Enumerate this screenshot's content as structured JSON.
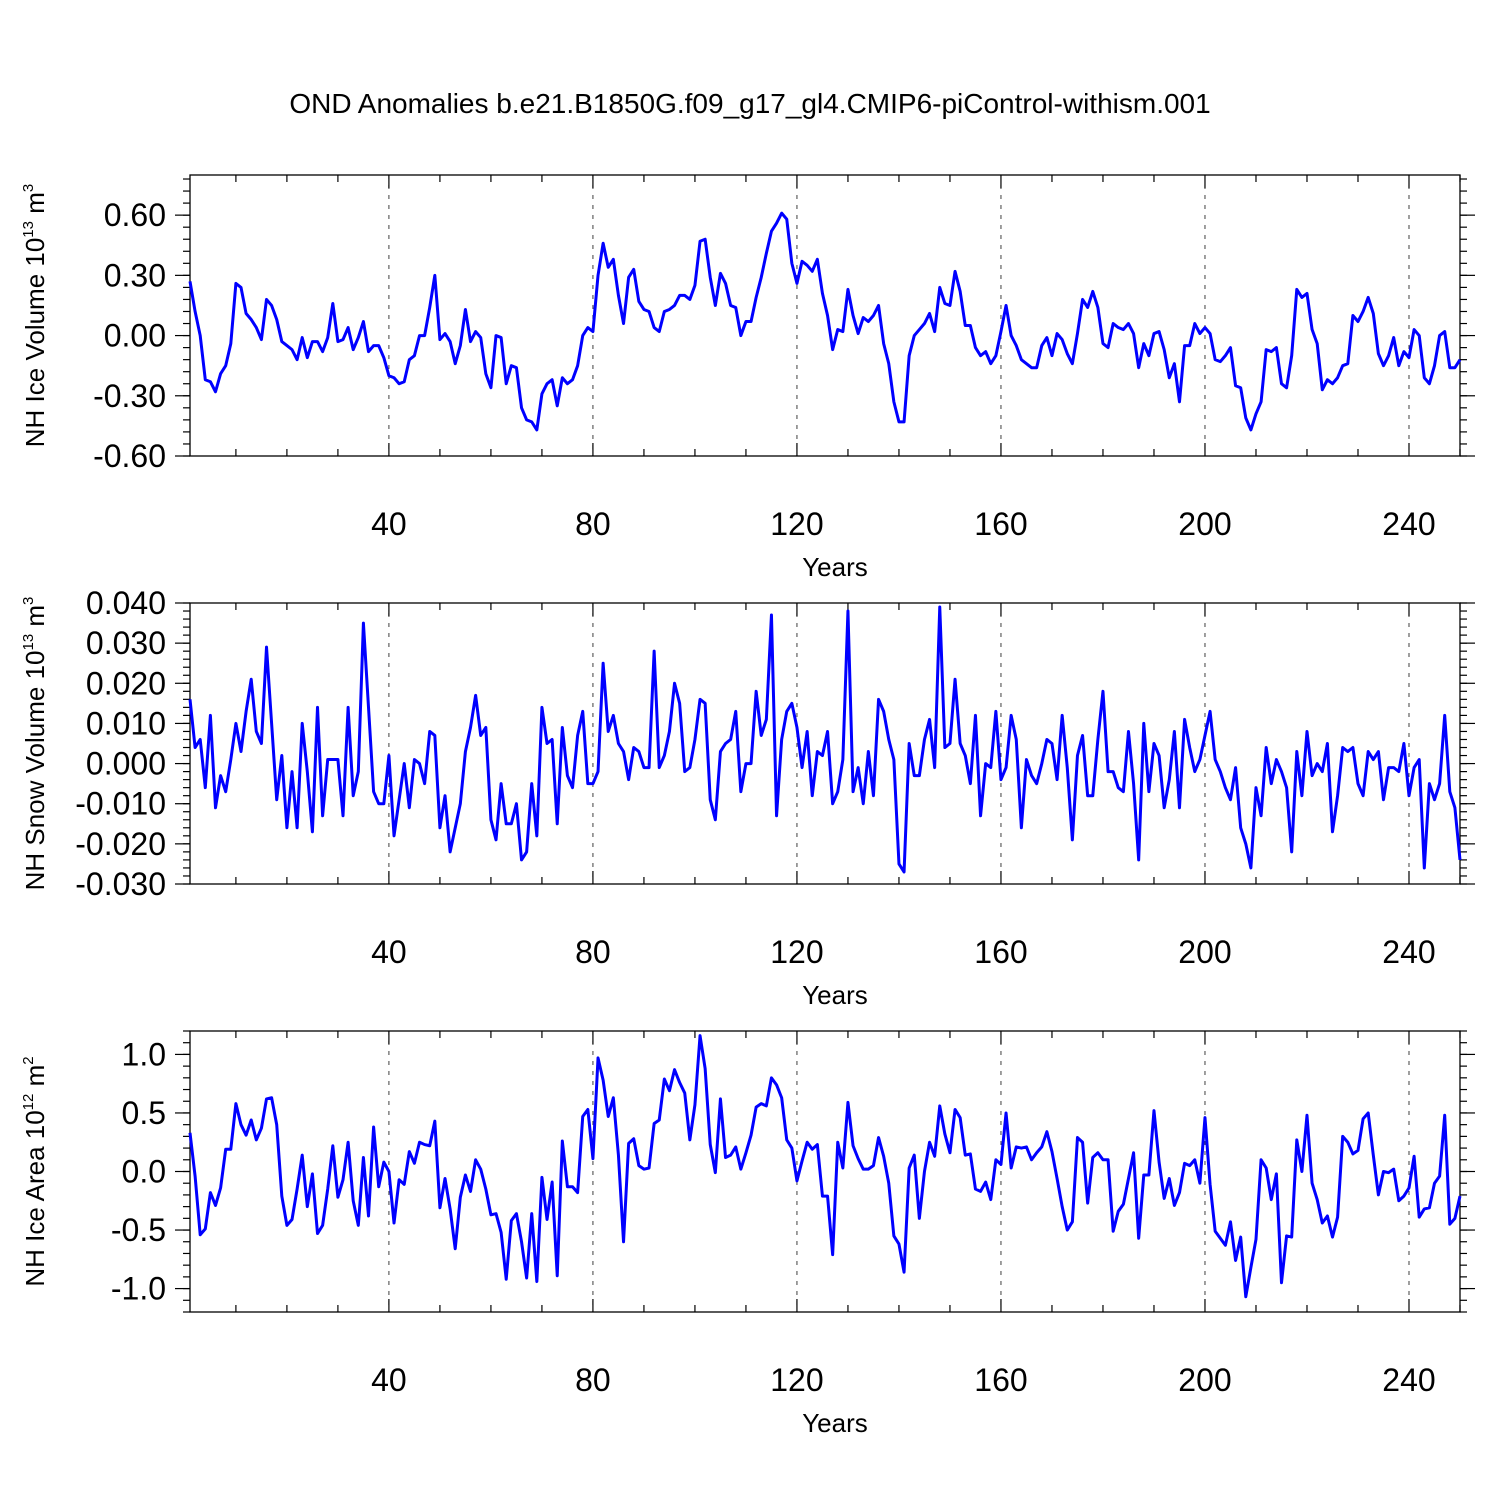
{
  "title": "OND Anomalies b.e21.B1850G.f09_g17_gl4.CMIP6-piControl-withism.001",
  "colors": {
    "line": "#0000ff",
    "axes": "#000000",
    "background": "#ffffff"
  },
  "chart_data": [
    {
      "type": "line",
      "xlabel": "Years",
      "ylabel": {
        "text": "NH Ice Volume 10",
        "sup": "13",
        "unit": " m",
        "unit_sup": "3"
      },
      "xlim": [
        1,
        250
      ],
      "ylim": [
        -0.6,
        0.8
      ],
      "xticks": [
        40,
        80,
        120,
        160,
        200,
        240
      ],
      "xtick_labels": [
        "40",
        "80",
        "120",
        "160",
        "200",
        "240"
      ],
      "yticks": [
        -0.6,
        -0.3,
        0.0,
        0.3,
        0.6
      ],
      "ytick_labels": [
        "-0.60",
        "-0.30",
        "0.00",
        "0.30",
        "0.60"
      ],
      "grid": "vertical dashed at major x ticks",
      "series": [
        {
          "name": "NH Ice Volume",
          "x_start": 1,
          "values": [
            0.27,
            0.12,
            0.0,
            -0.22,
            -0.23,
            -0.28,
            -0.19,
            -0.15,
            -0.04,
            0.26,
            0.24,
            0.11,
            0.08,
            0.04,
            -0.02,
            0.18,
            0.15,
            0.08,
            -0.03,
            -0.05,
            -0.07,
            -0.12,
            -0.01,
            -0.11,
            -0.03,
            -0.03,
            -0.08,
            -0.01,
            0.16,
            -0.03,
            -0.02,
            0.04,
            -0.07,
            -0.01,
            0.07,
            -0.08,
            -0.05,
            -0.05,
            -0.11,
            -0.2,
            -0.21,
            -0.24,
            -0.23,
            -0.12,
            -0.1,
            0.0,
            0.0,
            0.14,
            0.3,
            -0.02,
            0.01,
            -0.03,
            -0.14,
            -0.05,
            0.13,
            -0.03,
            0.02,
            -0.01,
            -0.19,
            -0.26,
            0.0,
            -0.01,
            -0.24,
            -0.15,
            -0.16,
            -0.36,
            -0.42,
            -0.43,
            -0.47,
            -0.29,
            -0.24,
            -0.22,
            -0.35,
            -0.21,
            -0.24,
            -0.22,
            -0.15,
            0.0,
            0.04,
            0.02,
            0.3,
            0.46,
            0.34,
            0.38,
            0.2,
            0.06,
            0.29,
            0.33,
            0.17,
            0.13,
            0.12,
            0.04,
            0.02,
            0.12,
            0.13,
            0.15,
            0.2,
            0.2,
            0.18,
            0.25,
            0.47,
            0.48,
            0.29,
            0.15,
            0.31,
            0.26,
            0.15,
            0.14,
            0.0,
            0.07,
            0.07,
            0.19,
            0.29,
            0.41,
            0.52,
            0.56,
            0.61,
            0.58,
            0.36,
            0.26,
            0.37,
            0.35,
            0.32,
            0.38,
            0.21,
            0.1,
            -0.07,
            0.03,
            0.02,
            0.23,
            0.1,
            0.01,
            0.09,
            0.07,
            0.1,
            0.15,
            -0.04,
            -0.14,
            -0.33,
            -0.43,
            -0.43,
            -0.1,
            0.0,
            0.03,
            0.06,
            0.11,
            0.02,
            0.24,
            0.16,
            0.15,
            0.32,
            0.22,
            0.05,
            0.05,
            -0.06,
            -0.1,
            -0.08,
            -0.14,
            -0.1,
            0.02,
            0.15,
            0.0,
            -0.05,
            -0.12,
            -0.14,
            -0.16,
            -0.16,
            -0.05,
            -0.01,
            -0.1,
            0.01,
            -0.02,
            -0.09,
            -0.14,
            0.01,
            0.18,
            0.14,
            0.22,
            0.14,
            -0.04,
            -0.06,
            0.06,
            0.04,
            0.03,
            0.06,
            0.01,
            -0.16,
            -0.04,
            -0.1,
            0.01,
            0.02,
            -0.07,
            -0.21,
            -0.14,
            -0.33,
            -0.05,
            -0.05,
            0.06,
            0.01,
            0.04,
            0.01,
            -0.12,
            -0.13,
            -0.1,
            -0.06,
            -0.25,
            -0.26,
            -0.41,
            -0.47,
            -0.39,
            -0.33,
            -0.07,
            -0.08,
            -0.06,
            -0.24,
            -0.26,
            -0.1,
            0.23,
            0.19,
            0.21,
            0.03,
            -0.04,
            -0.27,
            -0.22,
            -0.24,
            -0.21,
            -0.15,
            -0.14,
            0.1,
            0.07,
            0.12,
            0.19,
            0.11,
            -0.09,
            -0.15,
            -0.1,
            -0.01,
            -0.15,
            -0.08,
            -0.11,
            0.03,
            0.0,
            -0.21,
            -0.24,
            -0.15,
            0.0,
            0.02,
            -0.16,
            -0.16,
            -0.12
          ]
        }
      ]
    },
    {
      "type": "line",
      "xlabel": "Years",
      "ylabel": {
        "text": "NH Snow Volume 10",
        "sup": "13",
        "unit": " m",
        "unit_sup": "3"
      },
      "xlim": [
        1,
        250
      ],
      "ylim": [
        -0.03,
        0.04
      ],
      "xticks": [
        40,
        80,
        120,
        160,
        200,
        240
      ],
      "xtick_labels": [
        "40",
        "80",
        "120",
        "160",
        "200",
        "240"
      ],
      "yticks": [
        -0.03,
        -0.02,
        -0.01,
        0.0,
        0.01,
        0.02,
        0.03,
        0.04
      ],
      "ytick_labels": [
        "-0.030",
        "-0.020",
        "-0.010",
        "0.000",
        "0.010",
        "0.020",
        "0.030",
        "0.040"
      ],
      "grid": "vertical dashed at major x ticks",
      "series": [
        {
          "name": "NH Snow Volume",
          "x_start": 1,
          "values": [
            0.016,
            0.004,
            0.006,
            -0.006,
            0.012,
            -0.011,
            -0.003,
            -0.007,
            0.001,
            0.01,
            0.003,
            0.013,
            0.021,
            0.008,
            0.005,
            0.029,
            0.01,
            -0.009,
            0.002,
            -0.016,
            -0.002,
            -0.016,
            0.01,
            -0.002,
            -0.017,
            0.014,
            -0.013,
            0.001,
            0.001,
            0.001,
            -0.013,
            0.014,
            -0.008,
            -0.002,
            0.035,
            0.014,
            -0.007,
            -0.01,
            -0.01,
            0.002,
            -0.018,
            -0.009,
            0.0,
            -0.011,
            0.001,
            0.0,
            -0.005,
            0.008,
            0.007,
            -0.016,
            -0.008,
            -0.022,
            -0.016,
            -0.01,
            0.003,
            0.009,
            0.017,
            0.007,
            0.009,
            -0.014,
            -0.019,
            -0.005,
            -0.015,
            -0.015,
            -0.01,
            -0.024,
            -0.022,
            -0.005,
            -0.018,
            0.014,
            0.005,
            0.006,
            -0.015,
            0.009,
            -0.003,
            -0.006,
            0.007,
            0.013,
            -0.005,
            -0.005,
            -0.002,
            0.025,
            0.008,
            0.012,
            0.005,
            0.003,
            -0.004,
            0.004,
            0.003,
            -0.001,
            -0.001,
            0.028,
            -0.001,
            0.002,
            0.008,
            0.02,
            0.015,
            -0.002,
            -0.001,
            0.006,
            0.016,
            0.015,
            -0.009,
            -0.014,
            0.003,
            0.005,
            0.006,
            0.013,
            -0.007,
            0.0,
            0.0,
            0.018,
            0.007,
            0.011,
            0.037,
            -0.013,
            0.006,
            0.013,
            0.015,
            0.009,
            -0.001,
            0.008,
            -0.008,
            0.003,
            0.002,
            0.008,
            -0.01,
            -0.007,
            0.001,
            0.038,
            -0.007,
            -0.001,
            -0.01,
            0.003,
            -0.008,
            0.016,
            0.013,
            0.006,
            0.001,
            -0.025,
            -0.027,
            0.005,
            -0.003,
            -0.003,
            0.006,
            0.011,
            -0.001,
            0.039,
            0.004,
            0.005,
            0.021,
            0.005,
            0.002,
            -0.005,
            0.012,
            -0.013,
            0.0,
            -0.001,
            0.013,
            -0.004,
            -0.001,
            0.012,
            0.006,
            -0.016,
            0.001,
            -0.003,
            -0.005,
            0.0,
            0.006,
            0.005,
            -0.004,
            0.012,
            -0.001,
            -0.019,
            0.002,
            0.007,
            -0.008,
            -0.008,
            0.006,
            0.018,
            -0.002,
            -0.002,
            -0.006,
            -0.007,
            0.008,
            -0.005,
            -0.024,
            0.01,
            -0.007,
            0.005,
            0.002,
            -0.011,
            -0.004,
            0.008,
            -0.011,
            0.011,
            0.004,
            -0.002,
            0.001,
            0.007,
            0.013,
            0.001,
            -0.002,
            -0.006,
            -0.009,
            -0.001,
            -0.016,
            -0.02,
            -0.026,
            -0.006,
            -0.013,
            0.004,
            -0.005,
            0.001,
            -0.002,
            -0.006,
            -0.022,
            0.003,
            -0.008,
            0.008,
            -0.003,
            0.0,
            -0.002,
            0.005,
            -0.017,
            -0.008,
            0.004,
            0.003,
            0.004,
            -0.005,
            -0.008,
            0.003,
            0.001,
            0.003,
            -0.009,
            -0.001,
            -0.001,
            -0.002,
            0.005,
            -0.008,
            -0.001,
            0.001,
            -0.026,
            -0.005,
            -0.009,
            -0.005,
            0.012,
            -0.007,
            -0.011,
            -0.024
          ]
        }
      ]
    },
    {
      "type": "line",
      "xlabel": "Years",
      "ylabel": {
        "text": "NH Ice Area 10",
        "sup": "12",
        "unit": " m",
        "unit_sup": "2"
      },
      "xlim": [
        1,
        250
      ],
      "ylim": [
        -1.2,
        1.2
      ],
      "xticks": [
        40,
        80,
        120,
        160,
        200,
        240
      ],
      "xtick_labels": [
        "40",
        "80",
        "120",
        "160",
        "200",
        "240"
      ],
      "yticks": [
        -1.0,
        -0.5,
        0.0,
        0.5,
        1.0
      ],
      "ytick_labels": [
        "-1.0",
        "-0.5",
        "0.0",
        "0.5",
        "1.0"
      ],
      "grid": "vertical dashed at major x ticks",
      "series": [
        {
          "name": "NH Ice Area",
          "x_start": 1,
          "values": [
            0.33,
            -0.04,
            -0.54,
            -0.49,
            -0.18,
            -0.29,
            -0.14,
            0.19,
            0.19,
            0.58,
            0.4,
            0.31,
            0.44,
            0.27,
            0.37,
            0.62,
            0.63,
            0.4,
            -0.21,
            -0.46,
            -0.41,
            -0.15,
            0.14,
            -0.3,
            -0.02,
            -0.53,
            -0.46,
            -0.15,
            0.22,
            -0.22,
            -0.07,
            0.25,
            -0.25,
            -0.46,
            0.12,
            -0.38,
            0.38,
            -0.13,
            0.08,
            0.0,
            -0.44,
            -0.07,
            -0.11,
            0.17,
            0.07,
            0.25,
            0.23,
            0.22,
            0.43,
            -0.31,
            -0.06,
            -0.32,
            -0.66,
            -0.22,
            -0.03,
            -0.17,
            0.1,
            0.02,
            -0.15,
            -0.37,
            -0.36,
            -0.52,
            -0.92,
            -0.42,
            -0.36,
            -0.6,
            -0.91,
            -0.36,
            -0.94,
            -0.05,
            -0.41,
            -0.09,
            -0.89,
            0.26,
            -0.13,
            -0.13,
            -0.18,
            0.47,
            0.53,
            0.11,
            0.97,
            0.78,
            0.47,
            0.63,
            0.14,
            -0.6,
            0.24,
            0.28,
            0.05,
            0.02,
            0.03,
            0.41,
            0.44,
            0.79,
            0.69,
            0.87,
            0.76,
            0.67,
            0.27,
            0.57,
            1.16,
            0.88,
            0.23,
            -0.01,
            0.62,
            0.12,
            0.14,
            0.21,
            0.02,
            0.16,
            0.31,
            0.55,
            0.58,
            0.56,
            0.8,
            0.74,
            0.63,
            0.27,
            0.2,
            -0.08,
            0.09,
            0.25,
            0.19,
            0.23,
            -0.21,
            -0.21,
            -0.71,
            0.25,
            0.03,
            0.59,
            0.22,
            0.11,
            0.02,
            0.02,
            0.05,
            0.29,
            0.13,
            -0.1,
            -0.55,
            -0.62,
            -0.86,
            0.03,
            0.14,
            -0.4,
            0.0,
            0.25,
            0.13,
            0.56,
            0.32,
            0.16,
            0.53,
            0.46,
            0.14,
            0.15,
            -0.15,
            -0.17,
            -0.09,
            -0.24,
            0.1,
            0.06,
            0.5,
            0.03,
            0.21,
            0.2,
            0.21,
            0.1,
            0.16,
            0.21,
            0.34,
            0.17,
            -0.06,
            -0.3,
            -0.5,
            -0.43,
            0.29,
            0.25,
            -0.27,
            0.12,
            0.16,
            0.1,
            0.1,
            -0.51,
            -0.34,
            -0.28,
            -0.06,
            0.16,
            -0.57,
            -0.03,
            -0.03,
            0.52,
            0.08,
            -0.23,
            -0.06,
            -0.29,
            -0.18,
            0.07,
            0.05,
            0.1,
            -0.1,
            0.46,
            -0.11,
            -0.51,
            -0.57,
            -0.63,
            -0.43,
            -0.76,
            -0.56,
            -1.07,
            -0.82,
            -0.58,
            0.1,
            0.03,
            -0.24,
            -0.02,
            -0.95,
            -0.55,
            -0.56,
            0.27,
            0.0,
            0.48,
            -0.1,
            -0.24,
            -0.44,
            -0.38,
            -0.56,
            -0.39,
            0.3,
            0.25,
            0.15,
            0.18,
            0.45,
            0.5,
            0.14,
            -0.2,
            0.0,
            -0.01,
            0.02,
            -0.25,
            -0.21,
            -0.14,
            0.13,
            -0.39,
            -0.32,
            -0.31,
            -0.1,
            -0.04,
            0.48,
            -0.45,
            -0.4,
            -0.21
          ]
        }
      ]
    }
  ]
}
